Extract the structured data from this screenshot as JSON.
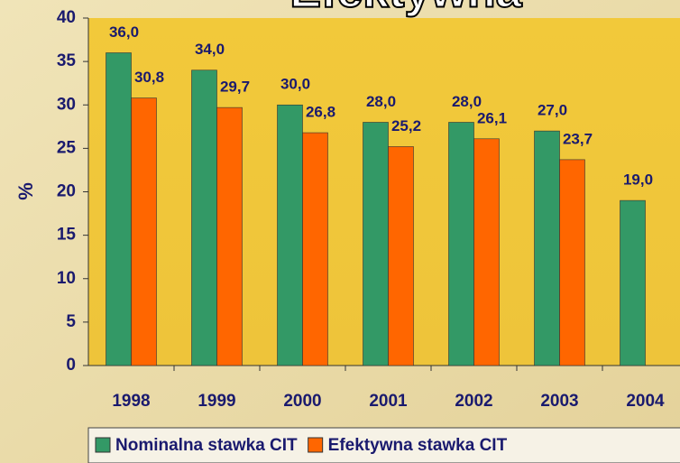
{
  "chart_data": {
    "type": "bar",
    "title": "Efektywna",
    "y_label": "%",
    "categories": [
      "1998",
      "1999",
      "2000",
      "2001",
      "2002",
      "2003",
      "2004"
    ],
    "series": [
      {
        "name": "Nominalna stawka CIT",
        "color": "#339966",
        "values": [
          36.0,
          34.0,
          30.0,
          28.0,
          28.0,
          27.0,
          19.0
        ],
        "value_labels": [
          "36,0",
          "34,0",
          "30,0",
          "28,0",
          "28,0",
          "27,0",
          "19,0"
        ]
      },
      {
        "name": "Efektywna stawka CIT",
        "color": "#ff6600",
        "values": [
          30.8,
          29.7,
          26.8,
          25.2,
          26.1,
          23.7,
          null
        ],
        "value_labels": [
          "30,8",
          "29,7",
          "26,8",
          "25,2",
          "26,1",
          "23,7",
          null
        ]
      }
    ],
    "ylim": [
      0,
      40
    ],
    "yticks": [
      0,
      5,
      10,
      15,
      20,
      25,
      30,
      35,
      40
    ],
    "legend": "bottom"
  }
}
